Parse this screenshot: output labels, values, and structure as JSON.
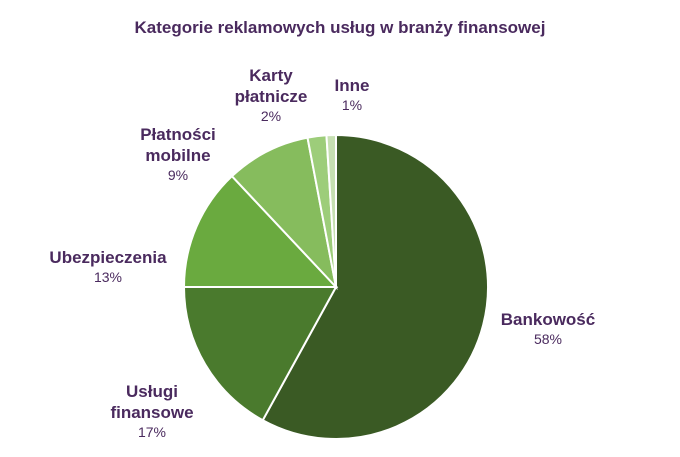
{
  "chart_data": {
    "type": "pie",
    "title": "Kategorie reklamowych usług w branży finansowej",
    "categories": [
      "Bankowość",
      "Usługi finansowe",
      "Ubezpieczenia",
      "Płatności mobilne",
      "Karty płatnicze",
      "Inne"
    ],
    "values": [
      58,
      17,
      13,
      9,
      2,
      1
    ],
    "value_labels": [
      "58%",
      "17%",
      "13%",
      "9%",
      "2%",
      "1%"
    ],
    "colors": [
      "#3a5a24",
      "#4a7a2d",
      "#6aaa3f",
      "#86bc5d",
      "#9dcd7a",
      "#c6e0b2"
    ]
  }
}
